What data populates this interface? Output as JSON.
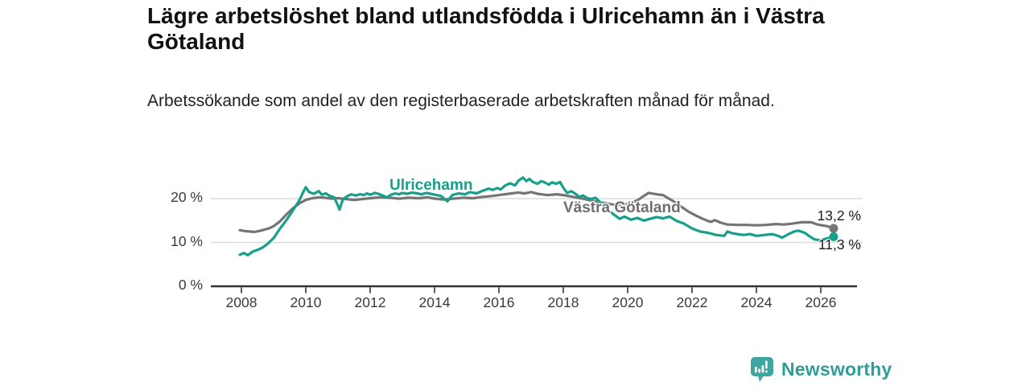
{
  "header": {
    "title": "Lägre arbetslöshet bland utlandsfödda i Ulricehamn än i Västra Götaland",
    "subtitle": "Arbetssökande som andel av den registerbaserade arbetskraften månad för månad."
  },
  "footer": {
    "brand": "Newsworthy",
    "logo_icon": "bar-chart-pin-icon"
  },
  "colors": {
    "accent_teal": "#16a08c",
    "series_gray": "#757575",
    "grid": "#dcdcdc",
    "axis": "#333333",
    "text_dark": "#1a1a1a",
    "logo_badge": "#3ea6a0",
    "logo_text": "#2e9e96"
  },
  "chart_data": {
    "type": "line",
    "title": "Lägre arbetslöshet bland utlandsfödda i Ulricehamn än i Västra Götaland",
    "subtitle": "Arbetssökande som andel av den registerbaserade arbetskraften månad för månad.",
    "xlabel": "",
    "ylabel": "",
    "unit": "percent",
    "grid": "horizontal",
    "legend_position": "inline-line-labels",
    "xlim": [
      2007.0,
      2027.3
    ],
    "ylim": [
      0,
      28
    ],
    "x_ticks": [
      2008,
      2010,
      2012,
      2014,
      2016,
      2018,
      2020,
      2022,
      2024,
      2026
    ],
    "x_tick_labels": [
      "2008",
      "2010",
      "2012",
      "2014",
      "2016",
      "2018",
      "2020",
      "2022",
      "2024",
      "2026"
    ],
    "y_ticks": [
      0,
      10,
      20
    ],
    "y_tick_labels": [
      "0 %",
      "10 %",
      "20 %"
    ],
    "series": [
      {
        "id": "ulricehamn",
        "name": "Ulricehamn",
        "color": "#16a08c",
        "end_value": 11.3,
        "end_label": "11,3 %",
        "points": [
          [
            2007.95,
            7.2
          ],
          [
            2008.08,
            7.6
          ],
          [
            2008.2,
            7.1
          ],
          [
            2008.35,
            7.9
          ],
          [
            2008.5,
            8.3
          ],
          [
            2008.65,
            8.8
          ],
          [
            2008.8,
            9.6
          ],
          [
            2009.0,
            11.0
          ],
          [
            2009.2,
            13.2
          ],
          [
            2009.35,
            14.6
          ],
          [
            2009.5,
            16.2
          ],
          [
            2009.65,
            17.9
          ],
          [
            2009.8,
            19.6
          ],
          [
            2009.9,
            21.2
          ],
          [
            2010.0,
            22.6
          ],
          [
            2010.1,
            21.5
          ],
          [
            2010.25,
            21.1
          ],
          [
            2010.4,
            21.7
          ],
          [
            2010.5,
            20.9
          ],
          [
            2010.62,
            21.2
          ],
          [
            2010.75,
            20.6
          ],
          [
            2010.88,
            20.3
          ],
          [
            2010.97,
            18.9
          ],
          [
            2011.05,
            17.5
          ],
          [
            2011.15,
            19.8
          ],
          [
            2011.3,
            20.6
          ],
          [
            2011.42,
            21.0
          ],
          [
            2011.55,
            20.7
          ],
          [
            2011.68,
            21.0
          ],
          [
            2011.8,
            20.8
          ],
          [
            2011.9,
            21.2
          ],
          [
            2012.0,
            20.9
          ],
          [
            2012.15,
            21.3
          ],
          [
            2012.3,
            21.0
          ],
          [
            2012.42,
            20.6
          ],
          [
            2012.52,
            20.3
          ],
          [
            2012.65,
            20.9
          ],
          [
            2012.78,
            21.2
          ],
          [
            2012.9,
            21.0
          ],
          [
            2013.0,
            21.3
          ],
          [
            2013.15,
            21.1
          ],
          [
            2013.3,
            21.4
          ],
          [
            2013.45,
            21.2
          ],
          [
            2013.6,
            21.0
          ],
          [
            2013.75,
            21.3
          ],
          [
            2013.88,
            21.1
          ],
          [
            2014.0,
            20.9
          ],
          [
            2014.2,
            20.6
          ],
          [
            2014.4,
            19.4
          ],
          [
            2014.55,
            20.8
          ],
          [
            2014.75,
            21.2
          ],
          [
            2014.95,
            21.0
          ],
          [
            2015.1,
            21.5
          ],
          [
            2015.3,
            21.2
          ],
          [
            2015.5,
            21.8
          ],
          [
            2015.68,
            22.3
          ],
          [
            2015.8,
            22.0
          ],
          [
            2015.95,
            22.4
          ],
          [
            2016.05,
            22.1
          ],
          [
            2016.2,
            23.0
          ],
          [
            2016.35,
            23.5
          ],
          [
            2016.5,
            23.0
          ],
          [
            2016.62,
            24.2
          ],
          [
            2016.75,
            24.8
          ],
          [
            2016.85,
            24.0
          ],
          [
            2016.95,
            24.5
          ],
          [
            2017.05,
            23.8
          ],
          [
            2017.2,
            23.4
          ],
          [
            2017.32,
            24.0
          ],
          [
            2017.45,
            23.6
          ],
          [
            2017.55,
            23.2
          ],
          [
            2017.65,
            23.7
          ],
          [
            2017.78,
            23.4
          ],
          [
            2017.9,
            23.8
          ],
          [
            2018.0,
            22.5
          ],
          [
            2018.12,
            21.3
          ],
          [
            2018.25,
            21.7
          ],
          [
            2018.4,
            21.0
          ],
          [
            2018.5,
            20.4
          ],
          [
            2018.62,
            20.7
          ],
          [
            2018.75,
            20.1
          ],
          [
            2018.88,
            19.9
          ],
          [
            2019.0,
            20.2
          ],
          [
            2019.2,
            18.8
          ],
          [
            2019.4,
            17.4
          ],
          [
            2019.6,
            16.2
          ],
          [
            2019.75,
            15.4
          ],
          [
            2019.9,
            15.9
          ],
          [
            2020.1,
            15.2
          ],
          [
            2020.3,
            15.6
          ],
          [
            2020.5,
            15.0
          ],
          [
            2020.7,
            15.4
          ],
          [
            2020.9,
            15.8
          ],
          [
            2021.1,
            15.5
          ],
          [
            2021.3,
            15.9
          ],
          [
            2021.5,
            15.0
          ],
          [
            2021.75,
            14.3
          ],
          [
            2022.0,
            13.2
          ],
          [
            2022.25,
            12.5
          ],
          [
            2022.5,
            12.2
          ],
          [
            2022.75,
            11.7
          ],
          [
            2023.0,
            11.5
          ],
          [
            2023.1,
            12.5
          ],
          [
            2023.25,
            12.1
          ],
          [
            2023.4,
            11.9
          ],
          [
            2023.6,
            11.7
          ],
          [
            2023.8,
            11.9
          ],
          [
            2024.0,
            11.5
          ],
          [
            2024.25,
            11.7
          ],
          [
            2024.5,
            11.9
          ],
          [
            2024.67,
            11.5
          ],
          [
            2024.8,
            11.1
          ],
          [
            2025.0,
            11.9
          ],
          [
            2025.17,
            12.5
          ],
          [
            2025.3,
            12.7
          ],
          [
            2025.5,
            12.2
          ],
          [
            2025.67,
            11.3
          ],
          [
            2025.8,
            10.7
          ],
          [
            2026.0,
            10.5
          ],
          [
            2026.17,
            10.9
          ],
          [
            2026.4,
            11.3
          ]
        ]
      },
      {
        "id": "vastra-gotaland",
        "name": "Västra Götaland",
        "color": "#757575",
        "end_value": 13.2,
        "end_label": "13,2 %",
        "points": [
          [
            2007.95,
            12.8
          ],
          [
            2008.1,
            12.6
          ],
          [
            2008.25,
            12.5
          ],
          [
            2008.4,
            12.4
          ],
          [
            2008.55,
            12.6
          ],
          [
            2008.7,
            12.9
          ],
          [
            2008.85,
            13.2
          ],
          [
            2009.0,
            13.7
          ],
          [
            2009.2,
            14.8
          ],
          [
            2009.4,
            16.4
          ],
          [
            2009.6,
            17.8
          ],
          [
            2009.8,
            18.9
          ],
          [
            2010.0,
            19.7
          ],
          [
            2010.2,
            20.1
          ],
          [
            2010.4,
            20.3
          ],
          [
            2010.6,
            20.2
          ],
          [
            2010.8,
            20.0
          ],
          [
            2011.0,
            20.1
          ],
          [
            2011.25,
            19.9
          ],
          [
            2011.5,
            19.7
          ],
          [
            2011.75,
            19.9
          ],
          [
            2012.0,
            20.1
          ],
          [
            2012.3,
            20.3
          ],
          [
            2012.6,
            20.2
          ],
          [
            2012.9,
            20.0
          ],
          [
            2013.2,
            20.2
          ],
          [
            2013.5,
            20.1
          ],
          [
            2013.8,
            20.3
          ],
          [
            2014.0,
            20.0
          ],
          [
            2014.3,
            19.8
          ],
          [
            2014.6,
            20.0
          ],
          [
            2014.9,
            20.2
          ],
          [
            2015.2,
            20.1
          ],
          [
            2015.5,
            20.4
          ],
          [
            2015.8,
            20.6
          ],
          [
            2016.0,
            20.8
          ],
          [
            2016.3,
            21.1
          ],
          [
            2016.6,
            21.4
          ],
          [
            2016.8,
            21.2
          ],
          [
            2017.0,
            21.5
          ],
          [
            2017.2,
            21.1
          ],
          [
            2017.5,
            20.8
          ],
          [
            2017.8,
            21.0
          ],
          [
            2018.0,
            20.8
          ],
          [
            2018.3,
            20.4
          ],
          [
            2018.6,
            20.0
          ],
          [
            2018.9,
            19.5
          ],
          [
            2019.2,
            19.1
          ],
          [
            2019.5,
            18.7
          ],
          [
            2019.8,
            18.5
          ],
          [
            2020.0,
            18.8
          ],
          [
            2020.3,
            19.6
          ],
          [
            2020.5,
            20.6
          ],
          [
            2020.65,
            21.3
          ],
          [
            2020.9,
            21.0
          ],
          [
            2021.1,
            20.8
          ],
          [
            2021.4,
            19.5
          ],
          [
            2021.7,
            18.0
          ],
          [
            2021.9,
            17.0
          ],
          [
            2022.1,
            16.2
          ],
          [
            2022.3,
            15.5
          ],
          [
            2022.5,
            14.9
          ],
          [
            2022.6,
            14.7
          ],
          [
            2022.7,
            15.1
          ],
          [
            2022.9,
            14.5
          ],
          [
            2023.1,
            14.1
          ],
          [
            2023.4,
            14.0
          ],
          [
            2023.7,
            14.0
          ],
          [
            2024.0,
            13.9
          ],
          [
            2024.3,
            14.0
          ],
          [
            2024.6,
            14.2
          ],
          [
            2024.85,
            14.1
          ],
          [
            2025.1,
            14.3
          ],
          [
            2025.4,
            14.6
          ],
          [
            2025.7,
            14.6
          ],
          [
            2025.9,
            14.1
          ],
          [
            2026.2,
            13.7
          ],
          [
            2026.4,
            13.2
          ]
        ]
      }
    ]
  }
}
